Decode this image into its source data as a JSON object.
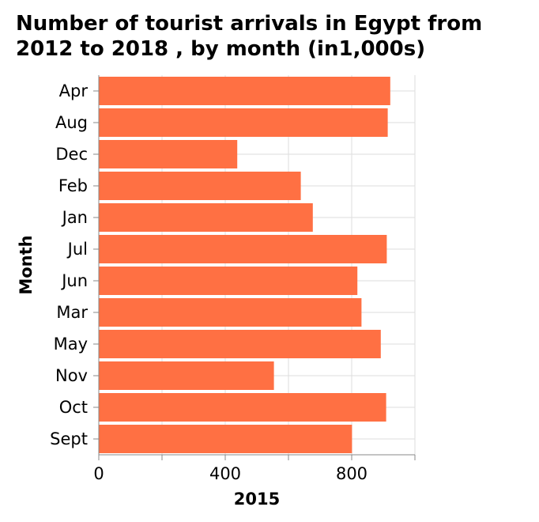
{
  "title_line1": "Number of tourist arrivals in Egypt from",
  "title_line2": "2012 to 2018 , by month (in1,000s)",
  "chart_data": {
    "type": "bar",
    "orientation": "horizontal",
    "title": "Number of tourist arrivals in Egypt from 2012 to 2018 , by month (in1,000s)",
    "xlabel": "2015",
    "ylabel": "Month",
    "categories": [
      "Apr",
      "Aug",
      "Dec",
      "Feb",
      "Jan",
      "Jul",
      "Jun",
      "Mar",
      "May",
      "Nov",
      "Oct",
      "Sept"
    ],
    "values": [
      922,
      914,
      438,
      639,
      677,
      911,
      818,
      831,
      892,
      554,
      909,
      801
    ],
    "xlim": [
      0,
      1000
    ],
    "xticks": [
      0,
      400,
      800
    ],
    "x_gridlines": [
      0,
      200,
      400,
      600,
      800,
      1000
    ],
    "grid": true,
    "bar_color": "#ff7043",
    "grid_color": "#dddddd"
  }
}
